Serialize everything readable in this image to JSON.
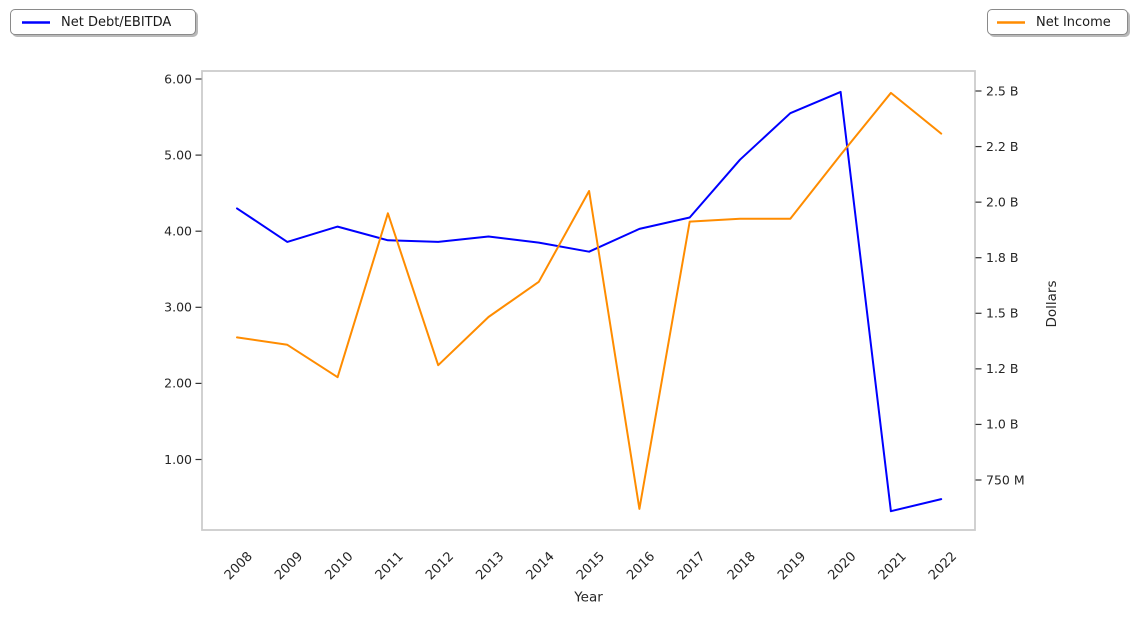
{
  "figure_background": "#ffffff",
  "chart_data": {
    "type": "line",
    "title": "",
    "x_label": "Year",
    "left_y_label": "",
    "right_y_label": "Dollars",
    "grid": false,
    "x": [
      2008,
      2009,
      2010,
      2011,
      2012,
      2013,
      2014,
      2015,
      2016,
      2017,
      2018,
      2019,
      2020,
      2021,
      2022
    ],
    "x_axis": {
      "tick_labels": [
        "2008",
        "2009",
        "2010",
        "2011",
        "2012",
        "2013",
        "2014",
        "2015",
        "2016",
        "2017",
        "2018",
        "2019",
        "2020",
        "2021",
        "2022"
      ],
      "label_rotation_deg": 45
    },
    "left_axis": {
      "tick_labels": [
        "6.00",
        "5.00",
        "4.00",
        "3.00",
        "2.00",
        "1.00"
      ],
      "tick_values": [
        6.0,
        5.0,
        4.0,
        3.0,
        2.0,
        1.0
      ],
      "range_approx": [
        0.1,
        6.1
      ]
    },
    "right_axis": {
      "tick_labels": [
        "2.5 B",
        "2.2 B",
        "2.0 B",
        "1.8 B",
        "1.5 B",
        "1.2 B",
        "1.0 B",
        "750 M"
      ],
      "tick_values_billions": [
        2.5,
        2.2,
        2.0,
        1.8,
        1.5,
        1.2,
        1.0,
        0.75
      ],
      "scale": "nonlinear-evenly-spaced-ticks"
    },
    "series": [
      {
        "name": "Net Debt/EBITDA",
        "axis": "left",
        "color": "#0000ff",
        "legend_position": "upper left",
        "values": [
          4.3,
          3.86,
          4.06,
          3.88,
          3.86,
          3.93,
          3.85,
          3.73,
          4.03,
          4.18,
          4.94,
          5.55,
          5.83,
          0.32,
          0.48
        ]
      },
      {
        "name": "Net Income",
        "axis": "right",
        "color": "#ff8c00",
        "unit": "USD (B = billions, M = millions)",
        "legend_position": "upper right",
        "values_billions": [
          1.37,
          1.33,
          1.17,
          1.96,
          1.22,
          1.48,
          1.67,
          2.04,
          0.62,
          1.93,
          1.94,
          1.94,
          2.17,
          2.49,
          2.27
        ]
      }
    ]
  },
  "style_colors": {
    "spine": "#cccccc",
    "tick_mark": "#333333",
    "tick_text": "#262626"
  }
}
